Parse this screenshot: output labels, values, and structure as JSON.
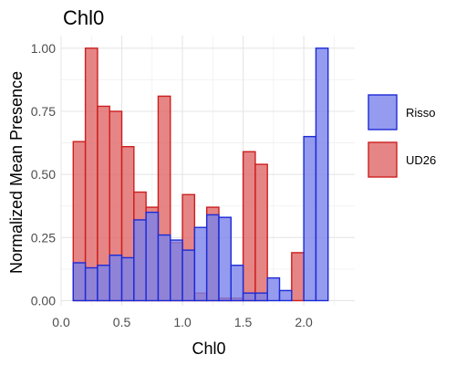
{
  "chart_data": {
    "type": "bar",
    "title": "Chl0",
    "xlabel": "Chl0",
    "ylabel": "Normalized Mean Presence",
    "xlim": [
      0,
      2.42
    ],
    "ylim": [
      -0.02,
      1.05
    ],
    "xticks": [
      0.0,
      0.5,
      1.0,
      1.5,
      2.0
    ],
    "xtick_labels": [
      "0.0",
      "0.5",
      "1.0",
      "1.5",
      "2.0"
    ],
    "yticks": [
      0.0,
      0.25,
      0.5,
      0.75,
      1.0
    ],
    "ytick_labels": [
      "0.00",
      "0.25",
      "0.50",
      "0.75",
      "1.00"
    ],
    "grid": true,
    "legend_position": "right",
    "bin_width": 0.1,
    "bin_centers": [
      0.15,
      0.25,
      0.35,
      0.45,
      0.55,
      0.65,
      0.75,
      0.85,
      0.95,
      1.05,
      1.15,
      1.25,
      1.35,
      1.45,
      1.55,
      1.65,
      1.75,
      1.85,
      1.95,
      2.05,
      2.15,
      2.25
    ],
    "series": [
      {
        "name": "UD26",
        "fill": "#e06666",
        "stroke": "#cc1f1f",
        "values": [
          0.63,
          1.0,
          0.77,
          0.75,
          0.61,
          0.43,
          0.37,
          0.81,
          0.23,
          0.42,
          0.03,
          0.37,
          0.01,
          0.01,
          0.59,
          0.54,
          null,
          null,
          0.19,
          null,
          null,
          null
        ]
      },
      {
        "name": "Risso",
        "fill": "#7b82ea",
        "stroke": "#1c2bd6",
        "values": [
          0.15,
          0.13,
          0.14,
          0.18,
          0.17,
          0.32,
          0.35,
          0.26,
          0.24,
          0.2,
          0.29,
          0.34,
          0.33,
          0.14,
          0.03,
          0.03,
          0.09,
          0.04,
          null,
          0.65,
          1.0,
          null
        ]
      }
    ]
  }
}
